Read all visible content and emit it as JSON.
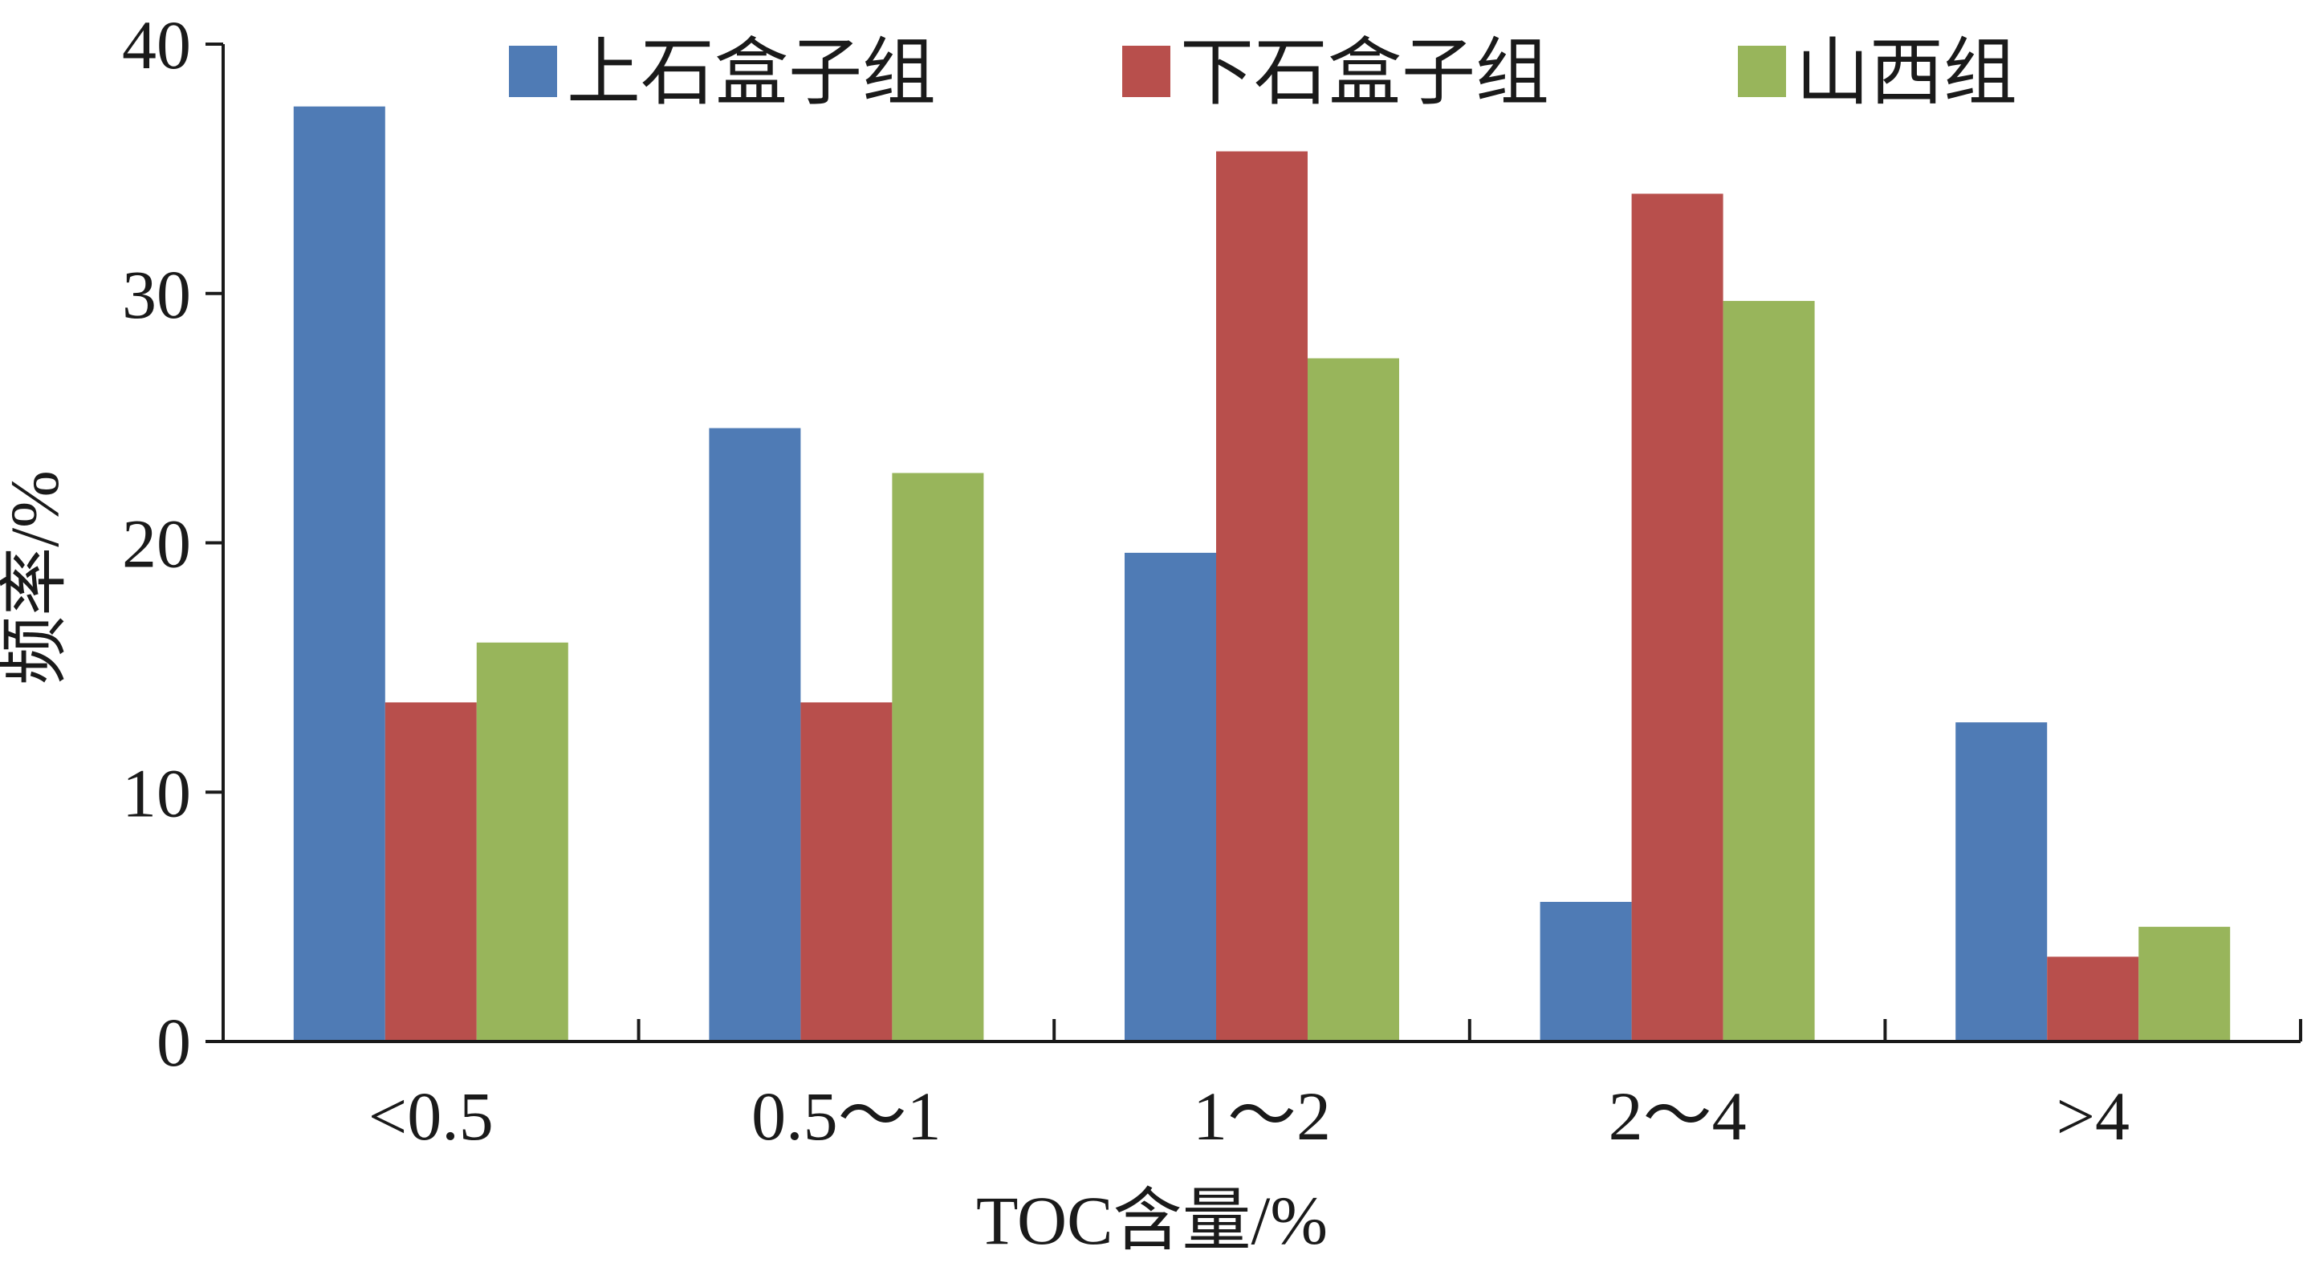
{
  "chart_data": {
    "type": "bar",
    "title": "",
    "xlabel": "TOC含量/%",
    "ylabel": "频率/%",
    "categories": [
      "<0.5",
      "0.5～1",
      "1～2",
      "2～4",
      ">4"
    ],
    "ylim": [
      0,
      40
    ],
    "yticks": [
      0,
      10,
      20,
      30,
      40
    ],
    "grid": false,
    "legend_position": "top",
    "series": [
      {
        "name": "上石盒子组",
        "color": "#4f7bb5",
        "values": [
          37.5,
          24.6,
          19.6,
          5.6,
          12.8
        ]
      },
      {
        "name": "下石盒子组",
        "color": "#b84f4c",
        "values": [
          13.6,
          13.6,
          35.7,
          34.0,
          3.4
        ]
      },
      {
        "name": "山西组",
        "color": "#98b55b",
        "values": [
          16.0,
          22.8,
          27.4,
          29.7,
          4.6
        ]
      }
    ]
  }
}
